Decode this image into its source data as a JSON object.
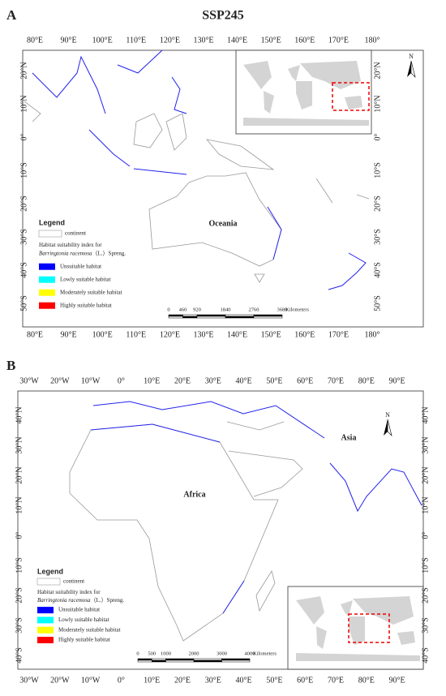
{
  "panels": [
    {
      "label": "A",
      "title": "SSP245",
      "lon_labels": [
        "80°E",
        "90°E",
        "100°E",
        "110°E",
        "120°E",
        "130°E",
        "140°E",
        "150°E",
        "160°E",
        "170°E",
        "180°"
      ],
      "lat_labels": [
        "20°N",
        "10°N",
        "0°",
        "10°S",
        "20°S",
        "30°S",
        "40°S",
        "50°S"
      ],
      "region_labels": [
        "Oceania"
      ],
      "north": "N",
      "legend": {
        "title": "Legend",
        "continent": "continent",
        "index_title": "Habitat suitability index for",
        "species": "Barringtonia racemosa",
        "authority": "（L.）Spreng.",
        "items": [
          {
            "label": "Unsuitable habitat",
            "color": "#0000ff"
          },
          {
            "label": "Lowly suitable habitat",
            "color": "#00ffff"
          },
          {
            "label": "Moderately suitable habitat",
            "color": "#ffff00"
          },
          {
            "label": "Highly suitable habitat",
            "color": "#ff0000"
          }
        ]
      },
      "scale": [
        "0",
        "460",
        "920",
        "1840",
        "2760",
        "3680"
      ],
      "scale_unit": "Kilometers"
    },
    {
      "label": "B",
      "lon_labels": [
        "30°W",
        "20°W",
        "10°W",
        "0°",
        "10°E",
        "20°E",
        "30°E",
        "40°E",
        "50°E",
        "60°E",
        "70°E",
        "80°E",
        "90°E"
      ],
      "lat_labels": [
        "40°N",
        "30°N",
        "20°N",
        "10°N",
        "0°",
        "10°S",
        "20°S",
        "30°S",
        "40°S"
      ],
      "region_labels": [
        "Africa",
        "Asia"
      ],
      "north": "N",
      "legend": {
        "title": "Legend",
        "continent": "continent",
        "index_title": "Habitat suitability index for",
        "species": "Barringtonia racemosa",
        "authority": "（L.）Spreng.",
        "items": [
          {
            "label": "Unsuitable habitat",
            "color": "#0000ff"
          },
          {
            "label": "Lowly suitable habitat",
            "color": "#00ffff"
          },
          {
            "label": "Moderately suitable habitat",
            "color": "#ffff00"
          },
          {
            "label": "Highly suitable habitat",
            "color": "#ff0000"
          }
        ]
      },
      "scale": [
        "0",
        "500",
        "1000",
        "2000",
        "3000",
        "4000"
      ],
      "scale_unit": "Kilometers"
    }
  ]
}
